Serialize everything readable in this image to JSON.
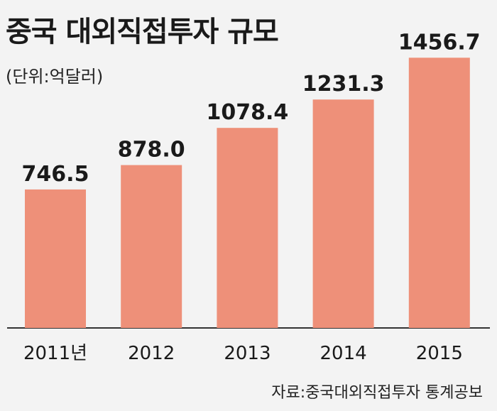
{
  "chart_data": {
    "type": "bar",
    "title": "중국 대외직접투자 규모",
    "unit_note": "(단위:억달러)",
    "categories": [
      "2011년",
      "2012",
      "2013",
      "2014",
      "2015"
    ],
    "series": [
      {
        "values": [
          746.5,
          878.0,
          1078.4,
          1231.3,
          1456.7
        ]
      }
    ],
    "value_labels": [
      "746.5",
      "878.0",
      "1078.4",
      "1231.3",
      "1456.7"
    ],
    "ylim": [
      0,
      1500
    ],
    "grid": false,
    "legend": "none",
    "source": "자료:중국대외직접투자 통계공보",
    "colors": {
      "bar": "#ee9079",
      "axis": "#333333",
      "background": "#f3f3f3"
    }
  }
}
